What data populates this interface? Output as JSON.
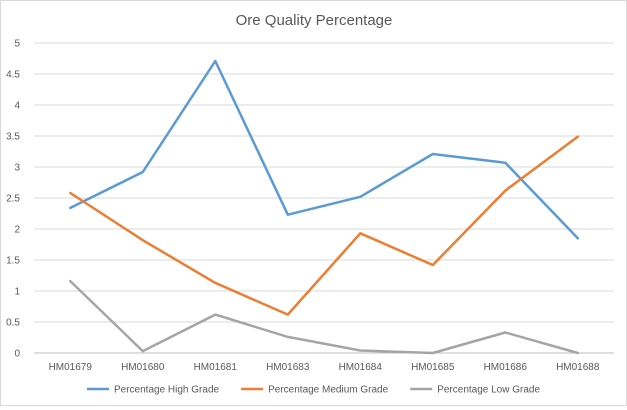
{
  "chart_data": {
    "type": "line",
    "title": "Ore Quality Percentage",
    "xlabel": "",
    "ylabel": "",
    "categories": [
      "HM01679",
      "HM01680",
      "HM01681",
      "HM01683",
      "HM01684",
      "HM01685",
      "HM01686",
      "HM01688"
    ],
    "ylim": [
      0,
      5
    ],
    "yticks": [
      "0",
      "0.5",
      "1",
      "1.5",
      "2",
      "2.5",
      "3",
      "3.5",
      "4",
      "4.5",
      "5"
    ],
    "grid": true,
    "legend_position": "bottom",
    "series": [
      {
        "name": "Percentage High Grade",
        "color": "#5b9bd5",
        "values": [
          2.34,
          2.92,
          4.71,
          2.23,
          2.52,
          3.21,
          3.07,
          1.85
        ]
      },
      {
        "name": "Percentage Medium Grade",
        "color": "#ed7d31",
        "values": [
          2.58,
          1.82,
          1.13,
          0.62,
          1.93,
          1.42,
          2.62,
          3.49
        ]
      },
      {
        "name": "Percentage Low Grade",
        "color": "#a5a5a5",
        "values": [
          1.16,
          0.03,
          0.62,
          0.26,
          0.04,
          0.0,
          0.33,
          0.0
        ]
      }
    ]
  }
}
